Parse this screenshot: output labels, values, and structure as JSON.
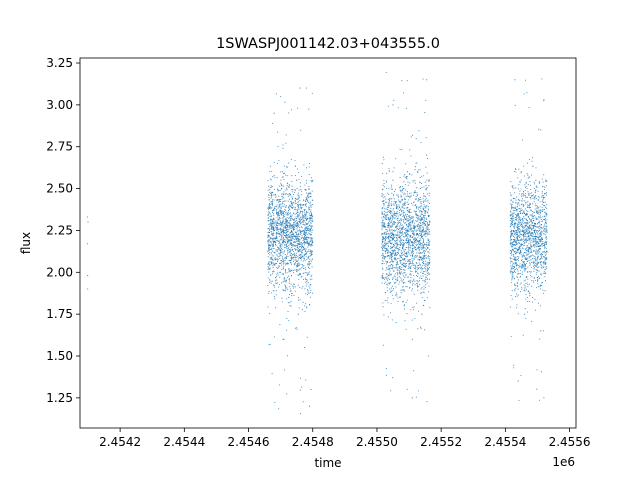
{
  "chart_data": {
    "type": "scatter",
    "title": "1SWASPJ001142.03+043555.0",
    "xlabel": "time",
    "ylabel": "flux",
    "x_offset_label": "1e6",
    "x_scale": 1000000,
    "xlim": [
      2454075,
      2455620
    ],
    "ylim": [
      1.07,
      3.28
    ],
    "xticks": [
      2454200,
      2454400,
      2454600,
      2454800,
      2455000,
      2455200,
      2455400,
      2455600
    ],
    "xtick_labels": [
      "2.4542",
      "2.4544",
      "2.4546",
      "2.4548",
      "2.4550",
      "2.4552",
      "2.4554",
      "2.4556"
    ],
    "yticks": [
      1.25,
      1.5,
      1.75,
      2.0,
      2.25,
      2.5,
      2.75,
      3.0,
      3.25
    ],
    "ytick_labels": [
      "1.25",
      "1.50",
      "1.75",
      "2.00",
      "2.25",
      "2.50",
      "2.75",
      "3.00",
      "3.25"
    ],
    "grid": false,
    "marker_color": "#1f77b4",
    "series": [
      {
        "points": [
          [
            2454098,
            2.33
          ],
          [
            2454098,
            2.17
          ],
          [
            2454099,
            1.98
          ],
          [
            2454099,
            1.9
          ],
          [
            2454100,
            2.3
          ],
          [
            2454668,
            2.2
          ],
          [
            2454672,
            2.05
          ],
          [
            2454675,
            2.4
          ],
          [
            2454680,
            2.25
          ],
          [
            2454685,
            1.95
          ],
          [
            2454690,
            2.15
          ],
          [
            2454695,
            2.35
          ],
          [
            2454700,
            2.0
          ],
          [
            2454705,
            2.6
          ],
          [
            2454710,
            1.6
          ],
          [
            2454715,
            2.22
          ],
          [
            2454720,
            2.3
          ],
          [
            2454725,
            1.85
          ],
          [
            2454730,
            2.1
          ],
          [
            2454735,
            2.45
          ],
          [
            2454740,
            2.18
          ],
          [
            2454745,
            2.05
          ],
          [
            2454750,
            2.55
          ],
          [
            2454755,
            1.75
          ],
          [
            2454760,
            2.3
          ],
          [
            2454765,
            2.12
          ],
          [
            2454770,
            2.4
          ],
          [
            2454775,
            1.55
          ],
          [
            2454780,
            2.25
          ],
          [
            2454785,
            2.05
          ],
          [
            2454790,
            2.65
          ],
          [
            2454795,
            1.3
          ],
          [
            2454680,
            2.95
          ],
          [
            2454760,
            3.1
          ],
          [
            2454790,
            1.2
          ],
          [
            2455025,
            2.2
          ],
          [
            2455030,
            2.05
          ],
          [
            2455035,
            2.4
          ],
          [
            2455040,
            1.9
          ],
          [
            2455045,
            2.3
          ],
          [
            2455050,
            2.55
          ],
          [
            2455055,
            2.1
          ],
          [
            2455060,
            1.7
          ],
          [
            2455065,
            2.35
          ],
          [
            2455070,
            2.0
          ],
          [
            2455075,
            2.45
          ],
          [
            2455080,
            2.15
          ],
          [
            2455085,
            1.8
          ],
          [
            2455090,
            2.25
          ],
          [
            2455095,
            2.6
          ],
          [
            2455100,
            2.05
          ],
          [
            2455105,
            2.3
          ],
          [
            2455110,
            1.6
          ],
          [
            2455115,
            2.2
          ],
          [
            2455120,
            2.4
          ],
          [
            2455125,
            1.95
          ],
          [
            2455130,
            2.15
          ],
          [
            2455135,
            2.5
          ],
          [
            2455140,
            1.75
          ],
          [
            2455145,
            2.3
          ],
          [
            2455150,
            2.05
          ],
          [
            2455155,
            2.7
          ],
          [
            2455160,
            1.5
          ],
          [
            2455050,
            3.0
          ],
          [
            2455110,
            1.25
          ],
          [
            2455155,
            3.15
          ],
          [
            2455425,
            2.25
          ],
          [
            2455430,
            2.05
          ],
          [
            2455435,
            2.45
          ],
          [
            2455440,
            1.9
          ],
          [
            2455445,
            2.3
          ],
          [
            2455450,
            2.6
          ],
          [
            2455455,
            2.1
          ],
          [
            2455460,
            1.75
          ],
          [
            2455465,
            2.35
          ],
          [
            2455470,
            2.0
          ],
          [
            2455475,
            2.4
          ],
          [
            2455480,
            2.15
          ],
          [
            2455485,
            1.85
          ],
          [
            2455490,
            2.25
          ],
          [
            2455495,
            2.55
          ],
          [
            2455500,
            2.05
          ],
          [
            2455505,
            2.3
          ],
          [
            2455510,
            1.65
          ],
          [
            2455515,
            2.2
          ],
          [
            2455520,
            2.4
          ],
          [
            2455525,
            1.95
          ],
          [
            2455430,
            3.15
          ],
          [
            2455440,
            1.35
          ],
          [
            2455510,
            2.85
          ],
          [
            2455520,
            1.25
          ]
        ]
      }
    ],
    "dense_bands": [
      {
        "x0": 2454660,
        "x1": 2454800,
        "center": 2.22,
        "spread": 0.3,
        "outlier_low": 1.15,
        "outlier_high": 3.15,
        "count": 1800
      },
      {
        "x0": 2455015,
        "x1": 2455165,
        "center": 2.2,
        "spread": 0.32,
        "outlier_low": 1.15,
        "outlier_high": 3.2,
        "count": 1800
      },
      {
        "x0": 2455415,
        "x1": 2455530,
        "center": 2.22,
        "spread": 0.3,
        "outlier_low": 1.2,
        "outlier_high": 3.2,
        "count": 1400
      }
    ]
  }
}
